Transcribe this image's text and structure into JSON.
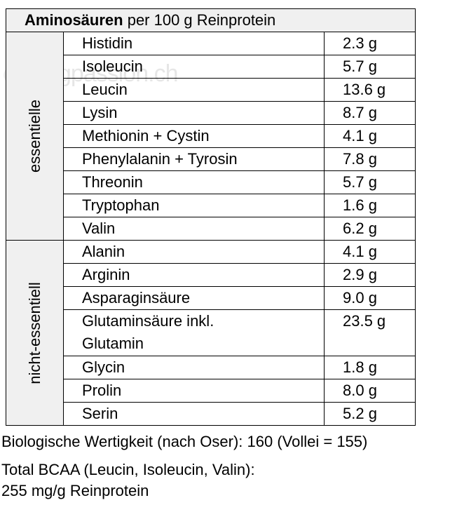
{
  "header": {
    "bold": "Aminosäuren",
    "rest": " per 100 g Reinprotein"
  },
  "groups": {
    "essential": "essentielle",
    "nonessential": "nicht-essentiell"
  },
  "essential_rows": [
    {
      "name": "Histidin",
      "value": "2.3 g"
    },
    {
      "name": "Isoleucin",
      "value": "5.7 g"
    },
    {
      "name": "Leucin",
      "value": "13.6 g"
    },
    {
      "name": "Lysin",
      "value": "8.7 g"
    },
    {
      "name": "Methionin + Cystin",
      "value": "4.1 g"
    },
    {
      "name": "Phenylalanin + Tyrosin",
      "value": "7.8 g"
    },
    {
      "name": "Threonin",
      "value": "5.7 g"
    },
    {
      "name": "Tryptophan",
      "value": "1.6 g"
    },
    {
      "name": "Valin",
      "value": "6.2 g"
    }
  ],
  "nonessential_rows": [
    {
      "name": "Alanin",
      "value": "4.1 g"
    },
    {
      "name": "Arginin",
      "value": "2.9 g"
    },
    {
      "name": "Asparaginsäure",
      "value": "9.0 g"
    },
    {
      "name": "Glutaminsäure inkl.",
      "name2": "Glutamin",
      "value": "23.5 g"
    },
    {
      "name": "Glycin",
      "value": "1.8 g"
    },
    {
      "name": "Prolin",
      "value": "8.0 g"
    },
    {
      "name": "Serin",
      "value": "5.2 g"
    }
  ],
  "notes": {
    "bio": "Biologische Wertigkeit (nach Oser): 160 (Vollei = 155)",
    "bcaa_line1": "Total BCAA (Leucin, Isoleucin, Valin):",
    "bcaa_line2": "255 mg/g Reinprotein"
  },
  "watermark": "cyclingpassion.ch"
}
